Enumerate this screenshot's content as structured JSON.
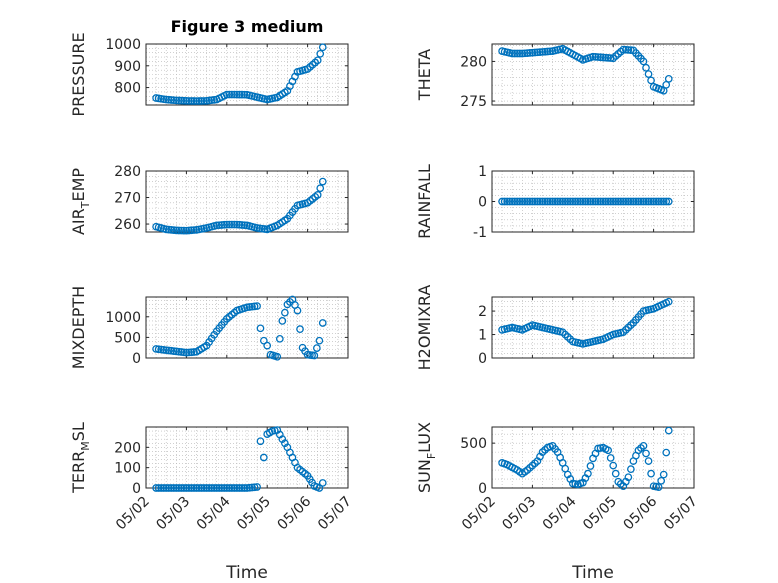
{
  "colors": {
    "marker": "#0072BD",
    "axis": "#262626"
  },
  "chart_data": [
    {
      "type": "scatter",
      "title": "Figure 3 medium",
      "ylabel": "PRESSURE",
      "ylabel_sub": "",
      "xlim": [
        "05/02",
        "05/07"
      ],
      "ylim": [
        720,
        1000
      ],
      "yticks": [
        800,
        900,
        1000
      ],
      "xticklabels": [],
      "xlabel": "",
      "grid": true,
      "series": [
        {
          "x": [
            "05/02 06:00",
            "05/02 12:00",
            "05/02 18:00",
            "05/03 00:00",
            "05/03 06:00",
            "05/03 12:00",
            "05/03 18:00",
            "05/04 00:00",
            "05/04 06:00",
            "05/04 12:00",
            "05/04 18:00",
            "05/05 00:00",
            "05/05 06:00",
            "05/05 12:00",
            "05/05 18:00",
            "05/06 00:00",
            "05/06 06:00",
            "05/06 09:00"
          ],
          "y": [
            752,
            745,
            741,
            739,
            738,
            739,
            745,
            768,
            768,
            767,
            756,
            745,
            755,
            785,
            872,
            885,
            925,
            985
          ]
        }
      ]
    },
    {
      "type": "scatter",
      "title": "",
      "ylabel": "THETA",
      "ylabel_sub": "",
      "xlim": [
        "05/02",
        "05/07"
      ],
      "ylim": [
        274.5,
        282.2
      ],
      "yticks": [
        275,
        280
      ],
      "xticklabels": [],
      "xlabel": "",
      "grid": true,
      "series": [
        {
          "x": [
            "05/02 06:00",
            "05/02 12:00",
            "05/02 18:00",
            "05/03 00:00",
            "05/03 06:00",
            "05/03 12:00",
            "05/03 18:00",
            "05/04 00:00",
            "05/04 06:00",
            "05/04 12:00",
            "05/04 18:00",
            "05/05 00:00",
            "05/05 06:00",
            "05/05 12:00",
            "05/05 18:00",
            "05/06 00:00",
            "05/06 06:00",
            "05/06 09:00"
          ],
          "y": [
            281.3,
            281.0,
            281.0,
            281.1,
            281.2,
            281.3,
            281.6,
            280.9,
            280.2,
            280.6,
            280.5,
            280.4,
            281.5,
            281.4,
            280.0,
            276.8,
            276.3,
            277.8
          ]
        }
      ]
    },
    {
      "type": "scatter",
      "title": "",
      "ylabel": "AIR",
      "ylabel_sub": "T",
      "ylabel_rest": "EMP",
      "xlim": [
        "05/02",
        "05/07"
      ],
      "ylim": [
        257,
        280
      ],
      "yticks": [
        260,
        270,
        280
      ],
      "xticklabels": [],
      "xlabel": "",
      "grid": true,
      "series": [
        {
          "x": [
            "05/02 06:00",
            "05/02 12:00",
            "05/02 18:00",
            "05/03 00:00",
            "05/03 06:00",
            "05/03 12:00",
            "05/03 18:00",
            "05/04 00:00",
            "05/04 06:00",
            "05/04 12:00",
            "05/04 18:00",
            "05/05 00:00",
            "05/05 06:00",
            "05/05 12:00",
            "05/05 18:00",
            "05/06 00:00",
            "05/06 06:00",
            "05/06 09:00"
          ],
          "y": [
            259.0,
            258.0,
            257.6,
            257.5,
            257.8,
            258.5,
            259.5,
            259.8,
            259.8,
            259.5,
            258.5,
            258.0,
            259.5,
            262.0,
            267.0,
            268.0,
            271.0,
            276.0
          ]
        }
      ]
    },
    {
      "type": "scatter",
      "title": "",
      "ylabel": "RAINFALL",
      "ylabel_sub": "",
      "xlim": [
        "05/02",
        "05/07"
      ],
      "ylim": [
        -1,
        1
      ],
      "yticks": [
        -1,
        0,
        1
      ],
      "xticklabels": [],
      "xlabel": "",
      "grid": true,
      "series": [
        {
          "x": [
            "05/02 06:00",
            "05/02 12:00",
            "05/02 18:00",
            "05/03 00:00",
            "05/03 06:00",
            "05/03 12:00",
            "05/03 18:00",
            "05/04 00:00",
            "05/04 06:00",
            "05/04 12:00",
            "05/04 18:00",
            "05/05 00:00",
            "05/05 06:00",
            "05/05 12:00",
            "05/05 18:00",
            "05/06 00:00",
            "05/06 06:00",
            "05/06 09:00"
          ],
          "y": [
            0,
            0,
            0,
            0,
            0,
            0,
            0,
            0,
            0,
            0,
            0,
            0,
            0,
            0,
            0,
            0,
            0,
            0
          ]
        }
      ]
    },
    {
      "type": "scatter",
      "title": "",
      "ylabel": "MIXDEPTH",
      "ylabel_sub": "",
      "xlim": [
        "05/02",
        "05/07"
      ],
      "ylim": [
        0,
        1480
      ],
      "yticks": [
        0,
        500,
        1000
      ],
      "xticklabels": [],
      "xlabel": "",
      "grid": true,
      "series": [
        {
          "x": [
            "05/02 06:00",
            "05/02 12:00",
            "05/02 18:00",
            "05/03 00:00",
            "05/03 06:00",
            "05/03 12:00",
            "05/03 18:00",
            "05/04 00:00",
            "05/04 06:00",
            "05/04 12:00",
            "05/04 18:00",
            "05/04 20:00",
            "05/04 22:00",
            "05/05 00:00",
            "05/05 02:00",
            "05/05 06:00",
            "05/05 09:00",
            "05/05 12:00",
            "05/05 15:00",
            "05/05 18:00",
            "05/05 21:00",
            "05/06 00:00",
            "05/06 04:00",
            "05/06 07:00",
            "05/06 09:00"
          ],
          "y": [
            220,
            190,
            160,
            130,
            150,
            300,
            650,
            950,
            1150,
            1230,
            1260,
            720,
            420,
            300,
            80,
            30,
            900,
            1300,
            1420,
            1150,
            250,
            80,
            60,
            420,
            850
          ]
        }
      ]
    },
    {
      "type": "scatter",
      "title": "",
      "ylabel": "H2OMIXRA",
      "ylabel_sub": "",
      "xlim": [
        "05/02",
        "05/07"
      ],
      "ylim": [
        0,
        2.6
      ],
      "yticks": [
        0,
        1,
        2
      ],
      "xticklabels": [],
      "xlabel": "",
      "grid": true,
      "series": [
        {
          "x": [
            "05/02 06:00",
            "05/02 12:00",
            "05/02 18:00",
            "05/03 00:00",
            "05/03 06:00",
            "05/03 12:00",
            "05/03 18:00",
            "05/04 00:00",
            "05/04 06:00",
            "05/04 12:00",
            "05/04 18:00",
            "05/05 00:00",
            "05/05 06:00",
            "05/05 12:00",
            "05/05 18:00",
            "05/06 00:00",
            "05/06 06:00",
            "05/06 09:00"
          ],
          "y": [
            1.2,
            1.3,
            1.2,
            1.4,
            1.3,
            1.2,
            1.1,
            0.7,
            0.6,
            0.7,
            0.8,
            1.0,
            1.1,
            1.5,
            2.0,
            2.1,
            2.3,
            2.4
          ]
        }
      ]
    },
    {
      "type": "scatter",
      "title": "",
      "ylabel": "TERR",
      "ylabel_sub": "M",
      "ylabel_rest": "SL",
      "xlim": [
        "05/02",
        "05/07"
      ],
      "ylim": [
        0,
        300
      ],
      "yticks": [
        0,
        100,
        200
      ],
      "xticklabels": [
        "05/02",
        "05/03",
        "05/04",
        "05/05",
        "05/06",
        "05/07"
      ],
      "xlabel": "Time",
      "grid": true,
      "series": [
        {
          "x": [
            "05/02 06:00",
            "05/02 12:00",
            "05/02 18:00",
            "05/03 00:00",
            "05/03 06:00",
            "05/03 12:00",
            "05/03 18:00",
            "05/04 00:00",
            "05/04 06:00",
            "05/04 12:00",
            "05/04 18:00",
            "05/04 20:00",
            "05/04 22:00",
            "05/05 00:00",
            "05/05 03:00",
            "05/05 06:00",
            "05/05 09:00",
            "05/05 12:00",
            "05/05 18:00",
            "05/06 00:00",
            "05/06 04:00",
            "05/06 07:00",
            "05/06 09:00"
          ],
          "y": [
            0,
            0,
            0,
            0,
            0,
            0,
            0,
            0,
            0,
            0,
            5,
            230,
            150,
            265,
            280,
            285,
            240,
            200,
            100,
            60,
            10,
            0,
            25
          ]
        }
      ]
    },
    {
      "type": "scatter",
      "title": "",
      "ylabel": "SUN",
      "ylabel_sub": "F",
      "ylabel_rest": "LUX",
      "xlim": [
        "05/02",
        "05/07"
      ],
      "ylim": [
        0,
        680
      ],
      "yticks": [
        0,
        500
      ],
      "xticklabels": [
        "05/02",
        "05/03",
        "05/04",
        "05/05",
        "05/06",
        "05/07"
      ],
      "xlabel": "Time",
      "grid": true,
      "series": [
        {
          "x": [
            "05/02 06:00",
            "05/02 09:00",
            "05/02 12:00",
            "05/02 15:00",
            "05/02 18:00",
            "05/02 21:00",
            "05/03 00:00",
            "05/03 03:00",
            "05/03 06:00",
            "05/03 09:00",
            "05/03 12:00",
            "05/03 15:00",
            "05/03 18:00",
            "05/03 21:00",
            "05/04 00:00",
            "05/04 03:00",
            "05/04 06:00",
            "05/04 09:00",
            "05/04 12:00",
            "05/04 15:00",
            "05/04 18:00",
            "05/04 21:00",
            "05/05 00:00",
            "05/05 03:00",
            "05/05 06:00",
            "05/05 09:00",
            "05/05 12:00",
            "05/05 15:00",
            "05/05 18:00",
            "05/05 21:00",
            "05/06 00:00",
            "05/06 03:00",
            "05/06 06:00",
            "05/06 09:00"
          ],
          "y": [
            280,
            260,
            230,
            200,
            160,
            200,
            250,
            300,
            400,
            450,
            470,
            400,
            280,
            150,
            50,
            40,
            60,
            160,
            330,
            440,
            450,
            420,
            250,
            70,
            20,
            120,
            300,
            420,
            470,
            300,
            20,
            10,
            150,
            640
          ]
        }
      ]
    }
  ]
}
